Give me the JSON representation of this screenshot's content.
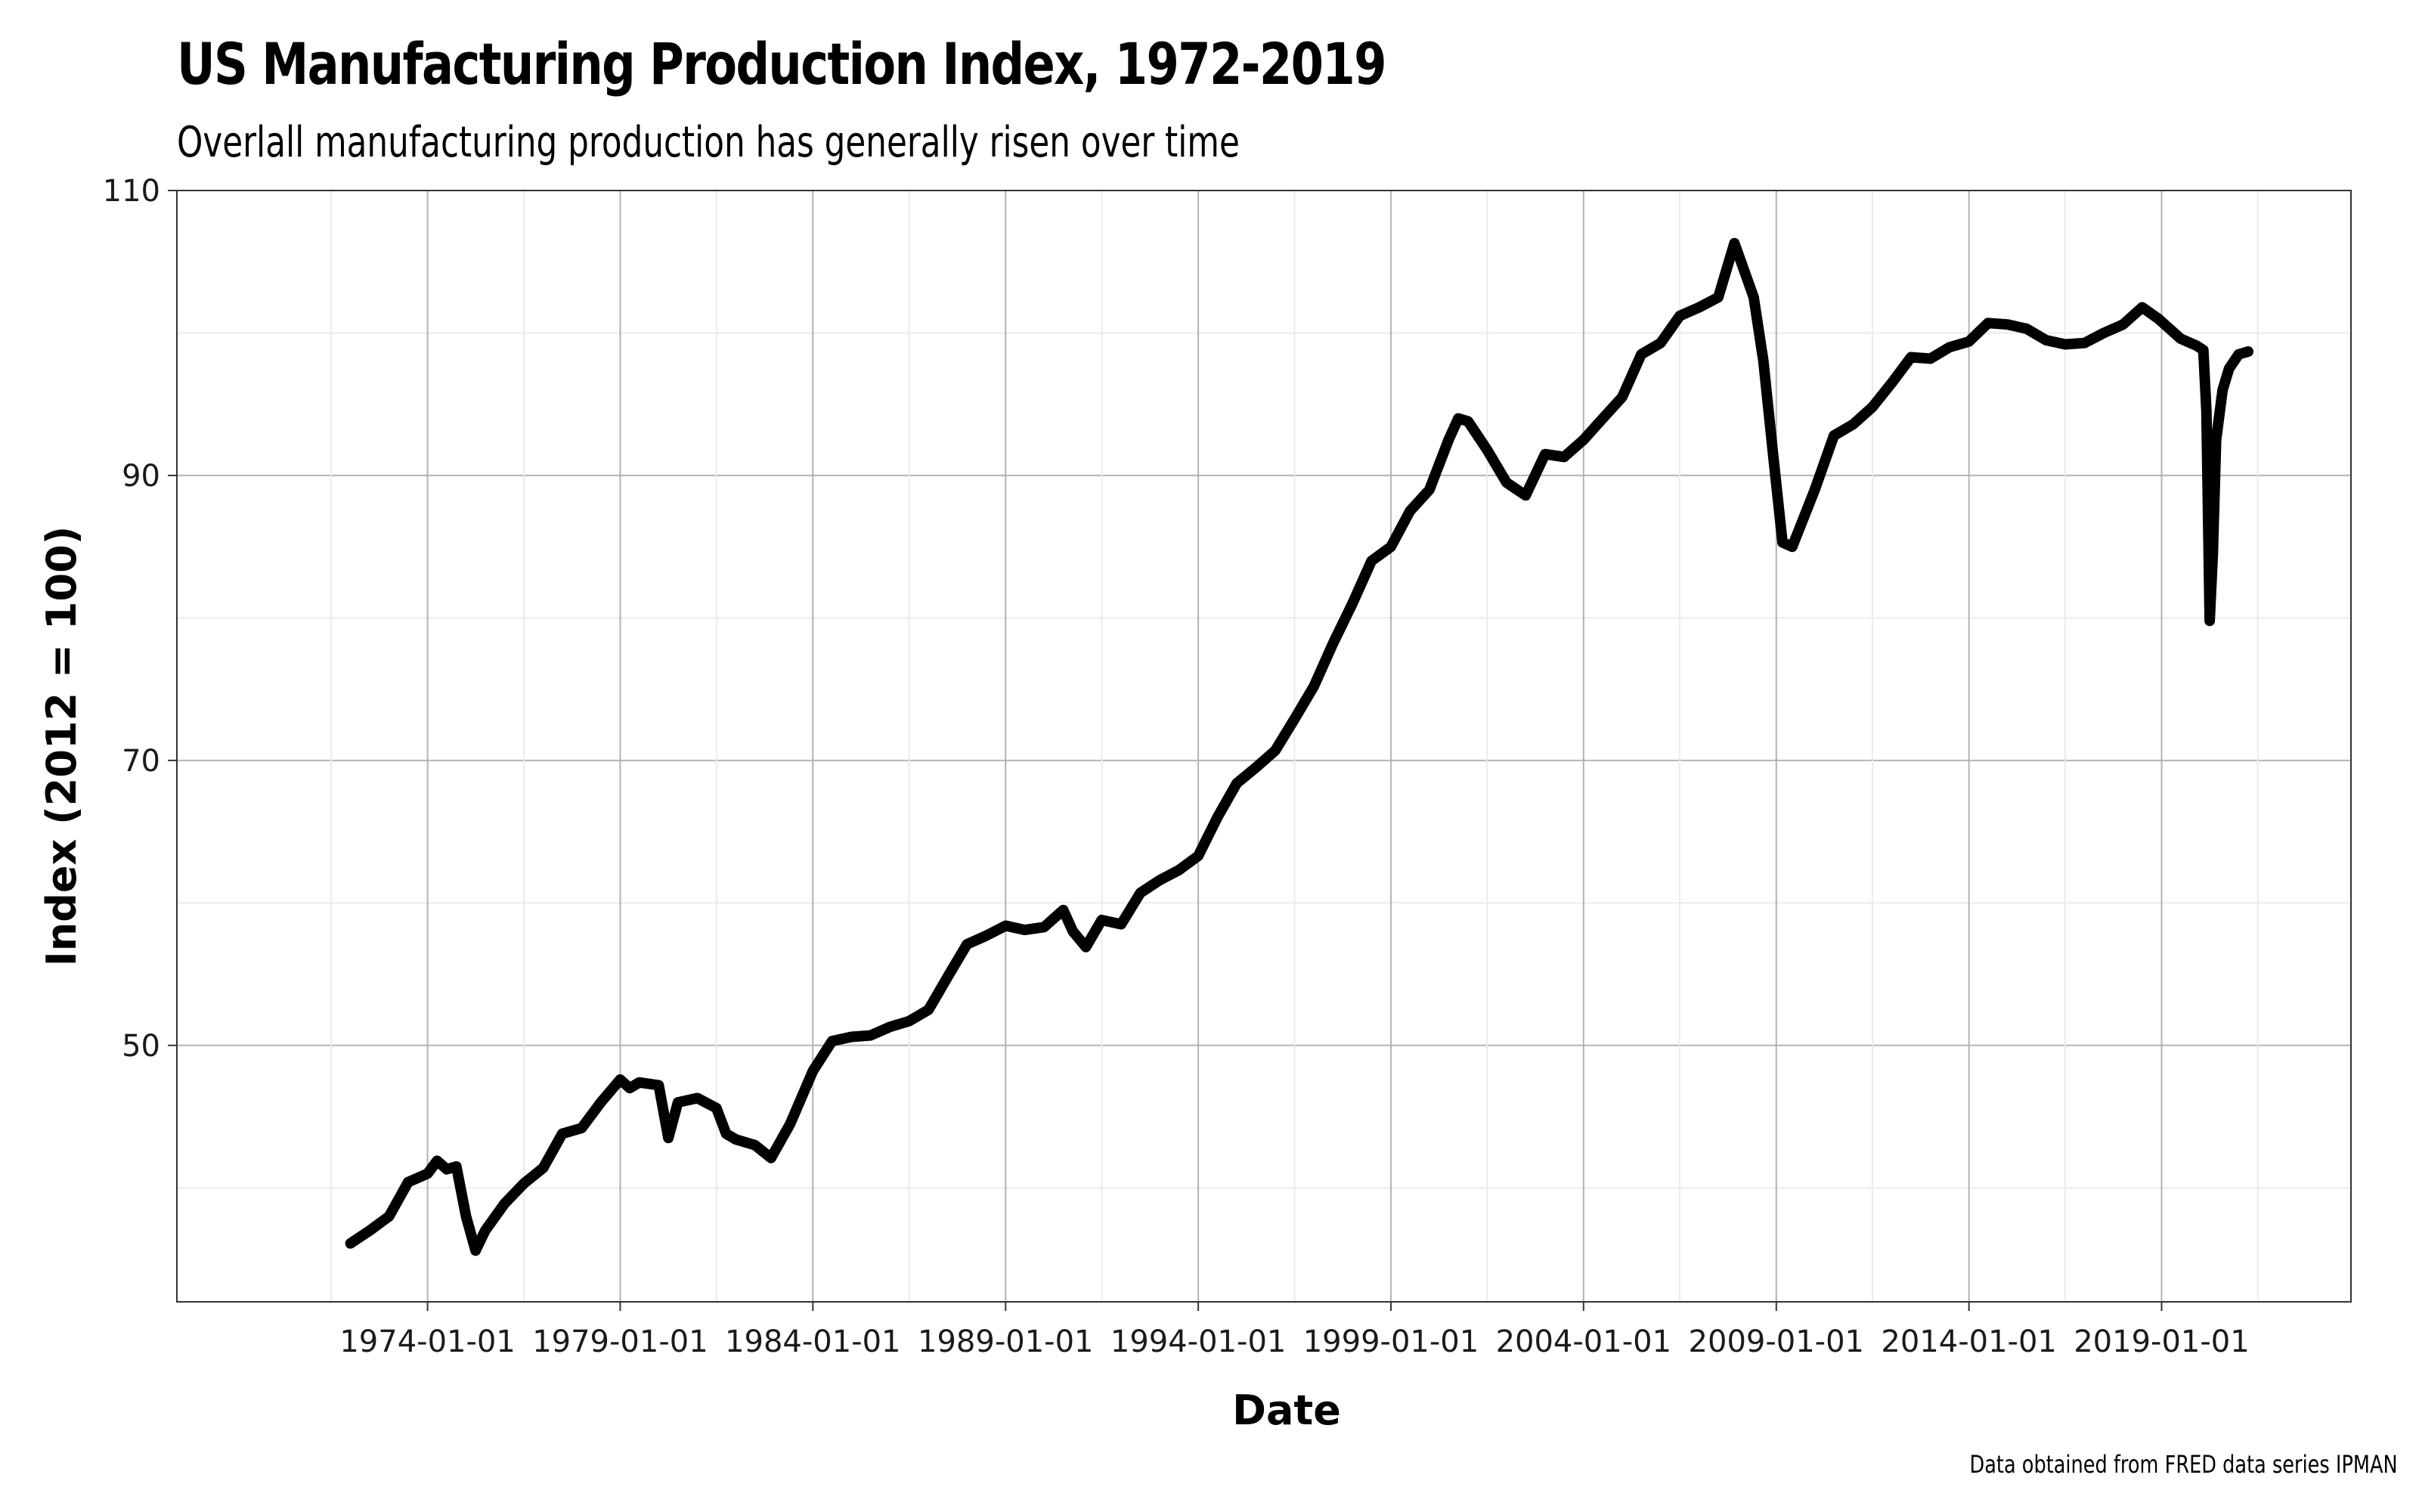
{
  "title": "US Manufacturing Production Index, 1972-2019",
  "subtitle": "Overlall manufacturing production has generally risen over time",
  "caption": "Data obtained from FRED data series IPMAN",
  "chart_data": {
    "type": "line",
    "xlabel": "Date",
    "ylabel": "Index (2012 = 100)",
    "x_tick_labels": [
      "1974-01-01",
      "1979-01-01",
      "1984-01-01",
      "1989-01-01",
      "1994-01-01",
      "1999-01-01",
      "2004-01-01",
      "2009-01-01",
      "2014-01-01",
      "2019-01-01"
    ],
    "y_tick_labels": [
      "50",
      "70",
      "90",
      "110"
    ],
    "xlim": [
      "1967-07-01",
      "2023-12-01"
    ],
    "ylim": [
      32,
      110
    ],
    "grid": true,
    "line_color": "#000000",
    "series": [
      {
        "x": [
          "1972-01-01",
          "1972-07-01",
          "1973-01-01",
          "1973-07-01",
          "1974-01-01",
          "1974-04-01",
          "1974-07-01",
          "1974-10-01",
          "1975-01-01",
          "1975-04-01",
          "1975-07-01",
          "1976-01-01",
          "1976-07-01",
          "1977-01-01",
          "1977-07-01",
          "1978-01-01",
          "1978-07-01",
          "1979-01-01",
          "1979-04-01",
          "1979-07-01",
          "1980-01-01",
          "1980-04-01",
          "1980-07-01",
          "1981-01-01",
          "1981-07-01",
          "1981-10-01",
          "1982-01-01",
          "1982-07-01",
          "1982-12-01",
          "1983-06-01",
          "1984-01-01",
          "1984-07-01",
          "1985-01-01",
          "1985-07-01",
          "1986-01-01",
          "1986-07-01",
          "1987-01-01",
          "1987-07-01",
          "1988-01-01",
          "1988-07-01",
          "1989-01-01",
          "1989-07-01",
          "1990-01-01",
          "1990-07-01",
          "1990-10-01",
          "1991-02-01",
          "1991-07-01",
          "1992-01-01",
          "1992-07-01",
          "1993-01-01",
          "1993-07-01",
          "1994-01-01",
          "1994-07-01",
          "1995-01-01",
          "1995-07-01",
          "1996-01-01",
          "1996-07-01",
          "1997-01-01",
          "1997-07-01",
          "1998-01-01",
          "1998-07-01",
          "1999-01-01",
          "1999-07-01",
          "2000-01-01",
          "2000-07-01",
          "2000-10-01",
          "2001-01-01",
          "2001-07-01",
          "2002-01-01",
          "2002-07-01",
          "2003-01-01",
          "2003-07-01",
          "2004-01-01",
          "2004-07-01",
          "2005-01-01",
          "2005-07-01",
          "2006-01-01",
          "2006-07-01",
          "2007-01-01",
          "2007-07-01",
          "2007-12-01",
          "2008-06-01",
          "2008-09-01",
          "2008-12-01",
          "2009-03-01",
          "2009-06-01",
          "2010-01-01",
          "2010-07-01",
          "2011-01-01",
          "2011-07-01",
          "2012-01-01",
          "2012-07-01",
          "2013-01-01",
          "2013-07-01",
          "2014-01-01",
          "2014-07-01",
          "2015-01-01",
          "2015-07-01",
          "2016-01-01",
          "2016-07-01",
          "2017-01-01",
          "2017-07-01",
          "2018-01-01",
          "2018-07-01",
          "2018-12-01",
          "2019-07-01",
          "2019-12-01",
          "2020-02-01",
          "2020-03-01",
          "2020-04-01",
          "2020-05-01",
          "2020-06-01",
          "2020-08-01",
          "2020-10-01",
          "2021-01-01",
          "2021-04-01"
        ],
        "values": [
          36.1,
          37.0,
          38.0,
          40.4,
          41.0,
          41.9,
          41.3,
          41.5,
          38.0,
          35.6,
          37.0,
          38.9,
          40.3,
          41.4,
          43.8,
          44.2,
          46.0,
          47.6,
          47.0,
          47.4,
          47.2,
          43.5,
          46.0,
          46.3,
          45.6,
          43.8,
          43.4,
          43.0,
          42.1,
          44.5,
          48.2,
          50.3,
          50.6,
          50.7,
          51.3,
          51.7,
          52.5,
          54.8,
          57.1,
          57.7,
          58.4,
          58.1,
          58.3,
          59.5,
          58.0,
          56.9,
          58.8,
          58.5,
          60.7,
          61.6,
          62.3,
          63.3,
          66.0,
          68.4,
          69.5,
          70.7,
          72.9,
          75.2,
          78.2,
          81.0,
          84.0,
          85.0,
          87.5,
          89.0,
          92.5,
          94.0,
          93.8,
          91.8,
          89.5,
          88.6,
          91.5,
          91.3,
          92.5,
          94.0,
          95.5,
          98.5,
          99.3,
          101.2,
          101.8,
          102.5,
          106.3,
          102.5,
          98.0,
          91.5,
          85.3,
          85.0,
          89.0,
          92.8,
          93.6,
          94.8,
          96.5,
          98.3,
          98.2,
          99.0,
          99.4,
          100.7,
          100.6,
          100.3,
          99.5,
          99.2,
          99.3,
          100.0,
          100.6,
          101.8,
          101.0,
          99.6,
          99.1,
          98.8,
          94.5,
          79.8,
          84.5,
          92.5,
          96.0,
          97.5,
          98.5,
          98.7
        ]
      }
    ]
  }
}
